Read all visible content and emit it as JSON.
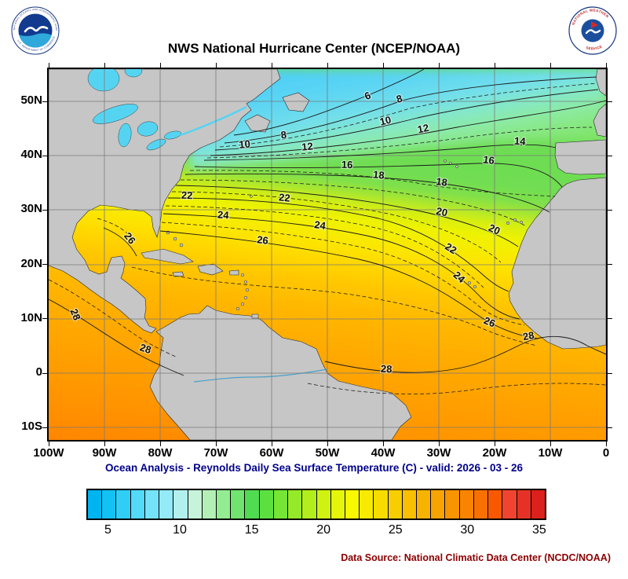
{
  "header": {
    "title": "NWS National Hurricane Center (NCEP/NOAA)"
  },
  "logos": {
    "noaa": {
      "ring_top": "NATIONAL OCEANIC AND ATMOSPHERIC ADMINISTRATION",
      "ring_bottom": "U.S. DEPARTMENT OF COMMERCE"
    },
    "nws": {
      "ring_top": "NATIONAL WEATHER",
      "ring_bottom": "SERVICE"
    }
  },
  "map": {
    "lat_labels": [
      "50N",
      "40N",
      "30N",
      "20N",
      "10N",
      "0",
      "10S"
    ],
    "lon_labels": [
      "100W",
      "90W",
      "80W",
      "70W",
      "60W",
      "50W",
      "40W",
      "30W",
      "20W",
      "10W",
      "0"
    ],
    "contour_labels": [
      "6",
      "8",
      "8",
      "10",
      "10",
      "12",
      "12",
      "14",
      "16",
      "16",
      "18",
      "18",
      "20",
      "20",
      "22",
      "22",
      "22",
      "24",
      "24",
      "24",
      "26",
      "26",
      "26",
      "28",
      "28",
      "28",
      "28"
    ]
  },
  "caption": "Ocean Analysis - Reynolds Daily Sea Surface Temperature (C) - valid: 2026 - 03 - 26",
  "source": "Data Source: National Climatic Data Center (NCDC/NOAA)",
  "colorbar": {
    "min": 4,
    "max": 36,
    "colors": [
      "#00b4f0",
      "#12c2f4",
      "#30cef6",
      "#52daf8",
      "#74e2f8",
      "#94eaf6",
      "#b2f0ee",
      "#c6f4da",
      "#b4f0b6",
      "#94ec92",
      "#70e46e",
      "#50dc50",
      "#5ce040",
      "#76e634",
      "#94ea28",
      "#b2ee1c",
      "#d0f212",
      "#e6f60a",
      "#f8f800",
      "#f8ea00",
      "#f8dc00",
      "#f8ce00",
      "#f8c000",
      "#f8b200",
      "#f8a400",
      "#f89400",
      "#f88400",
      "#f87000",
      "#f85800",
      "#f04430",
      "#e63226",
      "#dc201c"
    ],
    "tick_labels": [
      "5",
      "10",
      "15",
      "20",
      "25",
      "30",
      "35"
    ],
    "tick_values": [
      5,
      10,
      15,
      20,
      25,
      30,
      35
    ]
  },
  "chart_data": {
    "type": "heatmap",
    "title": "NWS National Hurricane Center (NCEP/NOAA)",
    "subtitle": "Ocean Analysis - Reynolds Daily Sea Surface Temperature (C) - valid: 2026 - 03 - 26",
    "variable": "Reynolds Daily Sea Surface Temperature",
    "units": "C",
    "valid_date": "2026 - 03 - 26",
    "x_tick_labels": [
      "100W",
      "90W",
      "80W",
      "70W",
      "60W",
      "50W",
      "40W",
      "30W",
      "20W",
      "10W",
      "0"
    ],
    "y_tick_labels": [
      "50N",
      "40N",
      "30N",
      "20N",
      "10N",
      "0",
      "10S"
    ],
    "contour_interval_c": 2,
    "labeled_isotherms_c": [
      6,
      8,
      10,
      12,
      14,
      16,
      18,
      20,
      22,
      24,
      26,
      28
    ],
    "colorbar_ticks_c": [
      5,
      10,
      15,
      20,
      25,
      30,
      35
    ],
    "colorbar_range_c": [
      4,
      36
    ],
    "data_source": "National Climatic Data Center (NCDC/NOAA)"
  }
}
